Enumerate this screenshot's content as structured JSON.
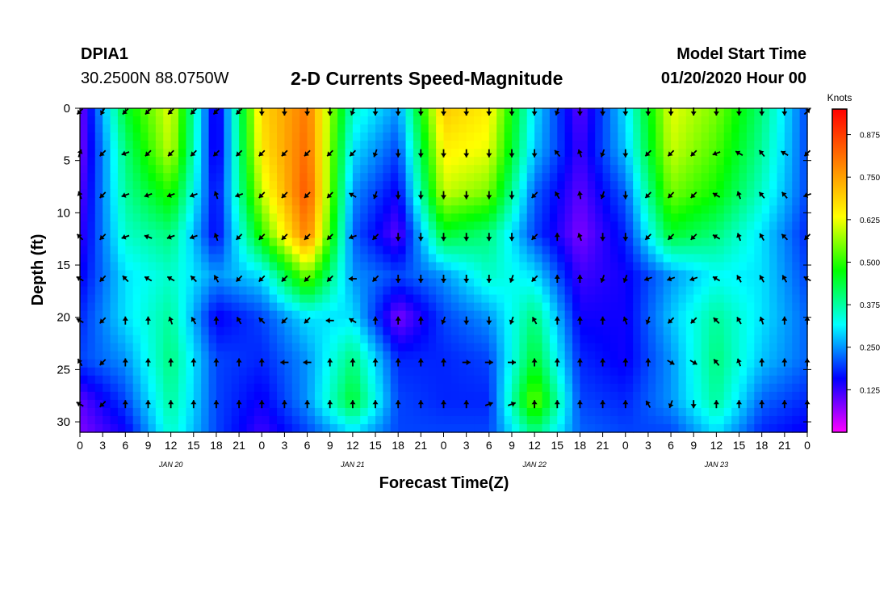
{
  "header": {
    "station": "DPIA1",
    "coords": "30.2500N 88.0750W",
    "title": "2-D Currents Speed-Magnitude",
    "start_label": "Model Start Time",
    "start_value": "01/20/2020 Hour 00"
  },
  "chart_data": {
    "type": "heatmap",
    "title": "2-D Currents Speed-Magnitude",
    "xlabel": "Forecast Time(Z)",
    "ylabel": "Depth (ft)",
    "xlim_hours": [
      0,
      96
    ],
    "ylim": [
      0,
      31
    ],
    "y_inverted": true,
    "x_tick_labels": [
      "0",
      "3",
      "6",
      "9",
      "12",
      "15",
      "18",
      "21",
      "0",
      "3",
      "6",
      "9",
      "12",
      "15",
      "18",
      "21",
      "0",
      "3",
      "6",
      "9",
      "12",
      "15",
      "18",
      "21",
      "0",
      "3",
      "6",
      "9",
      "12",
      "15",
      "18",
      "21",
      "0"
    ],
    "y_ticks": [
      0,
      5,
      10,
      15,
      20,
      25,
      30
    ],
    "date_labels": [
      {
        "label": "JAN 20",
        "hour": 12
      },
      {
        "label": "JAN 21",
        "hour": 36
      },
      {
        "label": "JAN 22",
        "hour": 60
      },
      {
        "label": "JAN 23",
        "hour": 84
      }
    ],
    "colorbar": {
      "title": "Knots",
      "range": [
        0.0,
        0.95
      ],
      "tick_values": [
        0.125,
        0.25,
        0.375,
        0.5,
        0.625,
        0.75,
        0.875
      ],
      "tick_labels": [
        "0.125",
        "0.250",
        "0.375",
        "0.500",
        "0.625",
        "0.750",
        "0.875"
      ],
      "colors": [
        "#ff00ff",
        "#0000ff",
        "#00ffff",
        "#00ff00",
        "#ffff00",
        "#ff7f00",
        "#ff0000"
      ]
    },
    "grid": {
      "hours": [
        0,
        6,
        12,
        18,
        24,
        30,
        36,
        42,
        48,
        54,
        60,
        66,
        72,
        78,
        84,
        90,
        96
      ],
      "depths": [
        0,
        4,
        8,
        12,
        16,
        20,
        24,
        28,
        31
      ],
      "speed": [
        [
          0.08,
          0.45,
          0.62,
          0.12,
          0.68,
          0.8,
          0.35,
          0.25,
          0.7,
          0.65,
          0.3,
          0.1,
          0.3,
          0.62,
          0.55,
          0.4,
          0.2
        ],
        [
          0.08,
          0.4,
          0.6,
          0.12,
          0.66,
          0.82,
          0.3,
          0.2,
          0.65,
          0.62,
          0.28,
          0.12,
          0.28,
          0.6,
          0.52,
          0.38,
          0.2
        ],
        [
          0.1,
          0.38,
          0.5,
          0.15,
          0.6,
          0.85,
          0.25,
          0.15,
          0.6,
          0.55,
          0.22,
          0.1,
          0.22,
          0.55,
          0.48,
          0.35,
          0.2
        ],
        [
          0.12,
          0.35,
          0.4,
          0.15,
          0.5,
          0.8,
          0.22,
          0.1,
          0.45,
          0.4,
          0.2,
          0.08,
          0.18,
          0.45,
          0.4,
          0.3,
          0.18
        ],
        [
          0.15,
          0.3,
          0.35,
          0.25,
          0.3,
          0.55,
          0.25,
          0.2,
          0.25,
          0.35,
          0.3,
          0.12,
          0.15,
          0.25,
          0.32,
          0.3,
          0.2
        ],
        [
          0.18,
          0.3,
          0.38,
          0.15,
          0.2,
          0.3,
          0.3,
          0.08,
          0.2,
          0.25,
          0.4,
          0.15,
          0.15,
          0.28,
          0.38,
          0.3,
          0.22
        ],
        [
          0.2,
          0.25,
          0.4,
          0.2,
          0.18,
          0.25,
          0.4,
          0.18,
          0.18,
          0.2,
          0.45,
          0.18,
          0.15,
          0.25,
          0.4,
          0.28,
          0.22
        ],
        [
          0.1,
          0.2,
          0.38,
          0.2,
          0.15,
          0.25,
          0.45,
          0.2,
          0.18,
          0.18,
          0.55,
          0.2,
          0.18,
          0.25,
          0.38,
          0.22,
          0.18
        ],
        [
          0.08,
          0.15,
          0.35,
          0.2,
          0.12,
          0.2,
          0.3,
          0.2,
          0.2,
          0.2,
          0.4,
          0.22,
          0.2,
          0.2,
          0.3,
          0.18,
          0.15
        ]
      ]
    },
    "arrow_depths": [
      0,
      4,
      8,
      12,
      16,
      20,
      24,
      28
    ],
    "arrow_hours": [
      0,
      3,
      6,
      9,
      12,
      15,
      18,
      21,
      24,
      27,
      30,
      33,
      36,
      39,
      42,
      45,
      48,
      51,
      54,
      57,
      60,
      63,
      66,
      69,
      72,
      75,
      78,
      81,
      84,
      87,
      90,
      93,
      96
    ],
    "arrow_directions_deg": [
      [
        225,
        210,
        225,
        225,
        225,
        225,
        225,
        225,
        180,
        180,
        180,
        180,
        200,
        180,
        180,
        180,
        180,
        180,
        180,
        180,
        180,
        200,
        180,
        180,
        180,
        180,
        180,
        180,
        180,
        180,
        180,
        180,
        45
      ],
      [
        20,
        225,
        250,
        225,
        225,
        225,
        225,
        225,
        225,
        225,
        225,
        225,
        225,
        200,
        180,
        180,
        180,
        180,
        180,
        180,
        180,
        320,
        340,
        200,
        180,
        225,
        225,
        225,
        250,
        300,
        320,
        300,
        225
      ],
      [
        340,
        225,
        250,
        250,
        250,
        250,
        340,
        250,
        225,
        225,
        225,
        225,
        300,
        200,
        180,
        180,
        180,
        180,
        180,
        180,
        225,
        330,
        350,
        200,
        180,
        225,
        225,
        225,
        300,
        340,
        320,
        320,
        250
      ],
      [
        315,
        225,
        250,
        290,
        250,
        250,
        340,
        225,
        225,
        225,
        225,
        225,
        250,
        225,
        180,
        180,
        180,
        180,
        180,
        180,
        225,
        0,
        340,
        180,
        180,
        225,
        225,
        225,
        300,
        340,
        330,
        315,
        225
      ],
      [
        300,
        225,
        315,
        300,
        300,
        315,
        330,
        225,
        225,
        225,
        225,
        225,
        270,
        225,
        180,
        180,
        180,
        180,
        180,
        200,
        225,
        0,
        0,
        200,
        200,
        250,
        250,
        250,
        300,
        330,
        330,
        330,
        300
      ],
      [
        300,
        225,
        0,
        0,
        340,
        330,
        0,
        330,
        315,
        225,
        225,
        270,
        300,
        0,
        0,
        0,
        200,
        180,
        180,
        200,
        330,
        0,
        0,
        0,
        340,
        200,
        225,
        225,
        315,
        330,
        340,
        0,
        0
      ],
      [
        330,
        225,
        0,
        0,
        0,
        0,
        0,
        0,
        0,
        270,
        270,
        0,
        0,
        0,
        0,
        0,
        0,
        90,
        90,
        90,
        0,
        0,
        0,
        0,
        0,
        0,
        120,
        120,
        320,
        340,
        0,
        0,
        0
      ],
      [
        300,
        225,
        0,
        0,
        0,
        0,
        0,
        0,
        0,
        0,
        0,
        0,
        0,
        0,
        0,
        0,
        0,
        0,
        70,
        70,
        0,
        0,
        0,
        0,
        0,
        330,
        200,
        180,
        0,
        0,
        0,
        0,
        0
      ]
    ]
  }
}
